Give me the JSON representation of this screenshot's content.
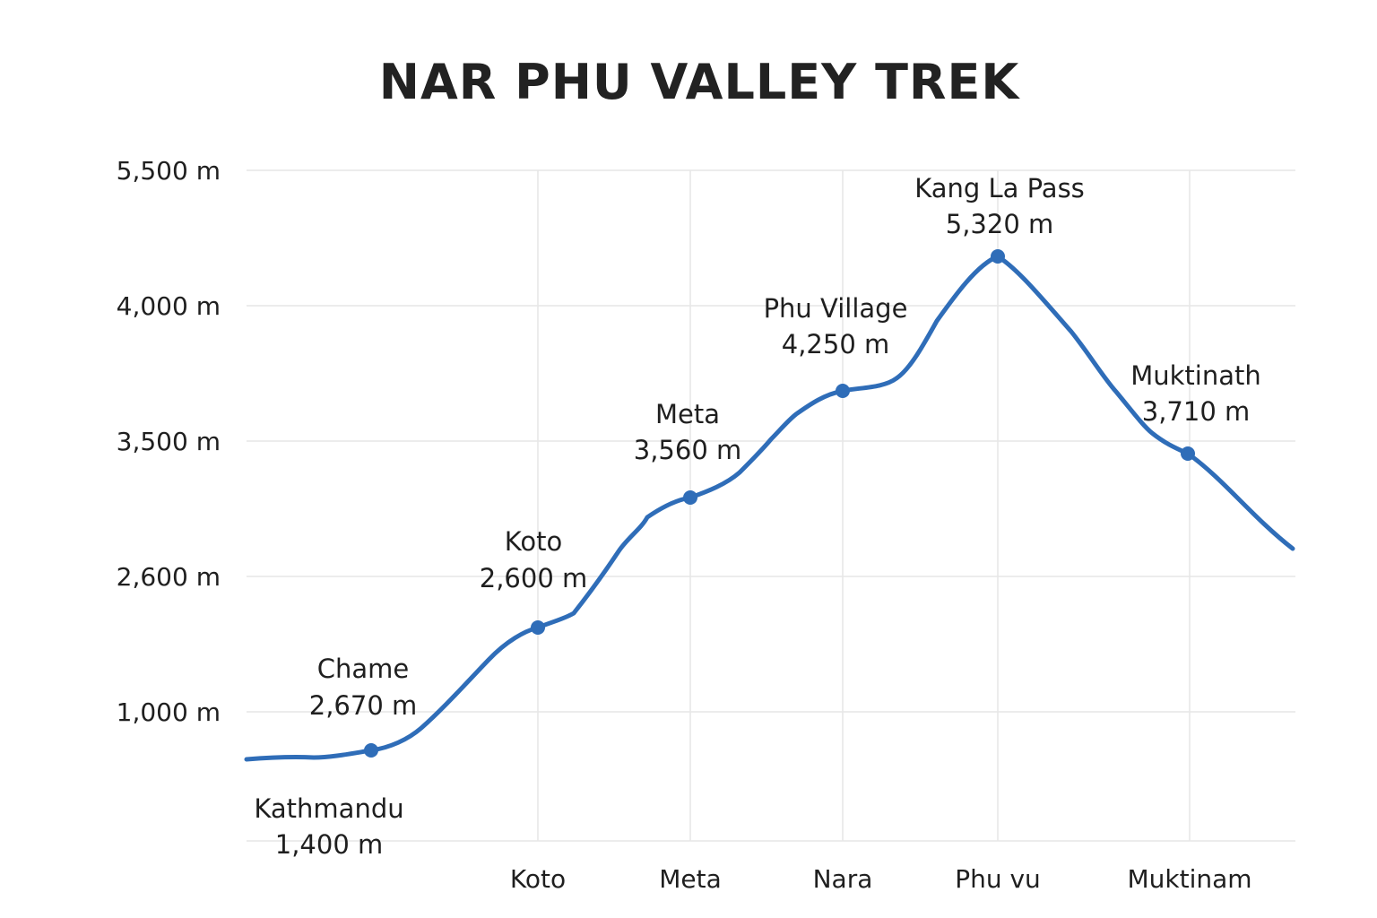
{
  "chart_data": {
    "type": "line",
    "title": "NAR PHU VALLEY TREK",
    "xlabel": "",
    "ylabel": "",
    "y_ticks": [
      "5,500 m",
      "4,000 m",
      "3,500 m",
      "2,600 m",
      "1,000 m"
    ],
    "x_ticks": [
      "Koto",
      "Meta",
      "Nara",
      "Phu vu",
      "Muktinam"
    ],
    "grid": true,
    "legend": "none",
    "line_color": "#2f6db8",
    "series": [
      {
        "values_note": "",
        "points": [
          {
            "name": "Kathmandu",
            "label": "1,400 m"
          },
          {
            "name": "Chame",
            "label": "2,670 m"
          },
          {
            "name": "Koto",
            "label": "2,600 m"
          },
          {
            "name": "Meta",
            "label": "3,560 m"
          },
          {
            "name": "Phu Village",
            "label": "4,250 m"
          },
          {
            "name": "Kang La Pass",
            "label": "5,320 m"
          },
          {
            "name": "Muktinath",
            "label": "3,710 m"
          }
        ]
      }
    ]
  }
}
